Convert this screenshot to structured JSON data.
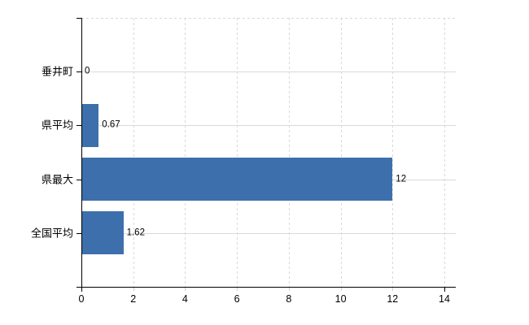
{
  "chart_data": {
    "type": "bar",
    "orientation": "horizontal",
    "title": "",
    "categories": [
      "垂井町",
      "県平均",
      "県最大",
      "全国平均"
    ],
    "values": [
      0,
      0.67,
      12,
      1.62
    ],
    "value_labels": [
      "0",
      "0.67",
      "12",
      "1.62"
    ],
    "x_ticks": [
      0,
      2,
      4,
      6,
      8,
      10,
      12,
      14
    ],
    "x_tick_labels": [
      "0",
      "2",
      "4",
      "6",
      "8",
      "10",
      "12",
      "14"
    ],
    "xlim": [
      0,
      14.4
    ],
    "xlabel": "",
    "ylabel": "",
    "legend": "none",
    "grid": {
      "horizontal": "solid",
      "vertical": "dashed",
      "top_border": "dashed"
    },
    "colors": {
      "bar": "#3d6fac",
      "gridline": "#d9d9d9",
      "axis": "#000000",
      "text": "#000000",
      "background": "#ffffff"
    }
  }
}
